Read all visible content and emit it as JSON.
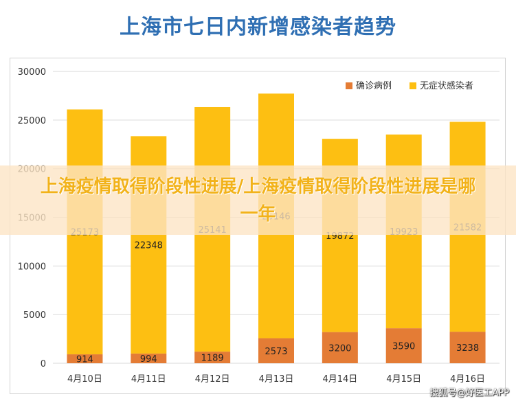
{
  "page_title": "上海市七日内新增感染者趋势",
  "banner": "上海疫情取得阶段性进展/上海疫情取得阶段性进展是哪一年",
  "watermark": "搜狐号@好医工APP",
  "colors": {
    "confirmed": "#e47c35",
    "asymptomatic": "#fdbf12",
    "grid": "#d9d9d9",
    "title": "#2f6fb3"
  },
  "chart_data": {
    "type": "bar",
    "stacked": true,
    "categories": [
      "4月10日",
      "4月11日",
      "4月12日",
      "4月13日",
      "4月14日",
      "4月15日",
      "4月16日"
    ],
    "series": [
      {
        "name": "确诊病例",
        "values": [
          914,
          994,
          1189,
          2573,
          3200,
          3590,
          3238
        ]
      },
      {
        "name": "无症状感染者",
        "values": [
          25173,
          22348,
          25141,
          25146,
          19872,
          19923,
          21582
        ]
      }
    ],
    "ylim": [
      0,
      30000
    ],
    "yticks": [
      0,
      5000,
      10000,
      15000,
      20000,
      25000,
      30000
    ],
    "grid": true,
    "legend": "top-right"
  }
}
